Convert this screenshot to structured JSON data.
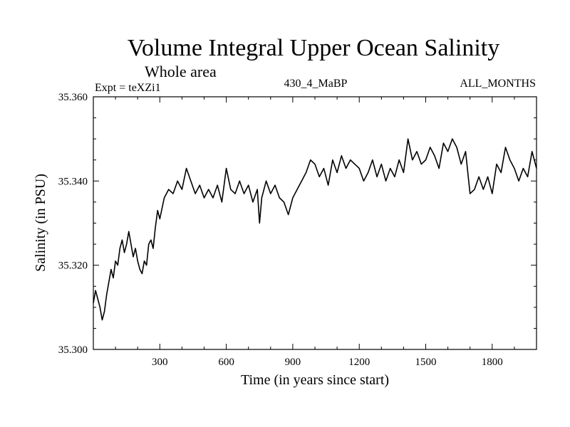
{
  "chart_data": {
    "type": "line",
    "title": "Volume Integral Upper Ocean Salinity",
    "subtitle": "Whole area",
    "left_label": "Expt = teXZi1",
    "center_label": "430_4_MaBP",
    "right_label": "ALL_MONTHS",
    "xlabel": "Time (in years since start)",
    "ylabel": "Salinity (in PSU)",
    "xlim": [
      0,
      2000
    ],
    "ylim": [
      35.3,
      35.36
    ],
    "xticks": [
      300,
      600,
      900,
      1200,
      1500,
      1800
    ],
    "yticks": [
      35.3,
      35.32,
      35.34,
      35.36
    ],
    "ytick_labels": [
      "35.300",
      "35.320",
      "35.340",
      "35.360"
    ],
    "xtick_labels": [
      "300",
      "600",
      "900",
      "1200",
      "1500",
      "1800"
    ],
    "series": [
      {
        "name": "salinity",
        "x": [
          0,
          10,
          20,
          30,
          40,
          50,
          60,
          70,
          80,
          90,
          100,
          110,
          120,
          130,
          140,
          150,
          160,
          170,
          180,
          190,
          200,
          210,
          220,
          230,
          240,
          250,
          260,
          270,
          280,
          290,
          300,
          320,
          340,
          360,
          380,
          400,
          420,
          440,
          460,
          480,
          500,
          520,
          540,
          560,
          580,
          600,
          620,
          640,
          660,
          680,
          700,
          720,
          740,
          750,
          760,
          780,
          800,
          820,
          840,
          860,
          880,
          900,
          920,
          940,
          960,
          980,
          1000,
          1020,
          1040,
          1060,
          1080,
          1100,
          1120,
          1140,
          1160,
          1180,
          1200,
          1220,
          1240,
          1260,
          1280,
          1300,
          1320,
          1340,
          1360,
          1380,
          1400,
          1420,
          1440,
          1460,
          1480,
          1500,
          1520,
          1540,
          1560,
          1580,
          1600,
          1620,
          1640,
          1660,
          1680,
          1700,
          1720,
          1740,
          1760,
          1780,
          1800,
          1820,
          1840,
          1860,
          1880,
          1900,
          1920,
          1940,
          1960,
          1980,
          2000
        ],
        "values": [
          35.311,
          35.314,
          35.312,
          35.31,
          35.307,
          35.309,
          35.313,
          35.316,
          35.319,
          35.317,
          35.321,
          35.32,
          35.324,
          35.326,
          35.323,
          35.325,
          35.328,
          35.325,
          35.322,
          35.324,
          35.321,
          35.319,
          35.318,
          35.321,
          35.32,
          35.325,
          35.326,
          35.324,
          35.329,
          35.333,
          35.331,
          35.336,
          35.338,
          35.337,
          35.34,
          35.338,
          35.343,
          35.34,
          35.337,
          35.339,
          35.336,
          35.338,
          35.336,
          35.339,
          35.335,
          35.343,
          35.338,
          35.337,
          35.34,
          35.337,
          35.339,
          35.335,
          35.338,
          35.33,
          35.336,
          35.34,
          35.337,
          35.339,
          35.336,
          35.335,
          35.332,
          35.336,
          35.338,
          35.34,
          35.342,
          35.345,
          35.344,
          35.341,
          35.343,
          35.339,
          35.345,
          35.342,
          35.346,
          35.343,
          35.345,
          35.344,
          35.343,
          35.34,
          35.342,
          35.345,
          35.341,
          35.344,
          35.34,
          35.343,
          35.341,
          35.345,
          35.342,
          35.35,
          35.345,
          35.347,
          35.344,
          35.345,
          35.348,
          35.346,
          35.343,
          35.349,
          35.347,
          35.35,
          35.348,
          35.344,
          35.347,
          35.337,
          35.338,
          35.341,
          35.338,
          35.341,
          35.337,
          35.344,
          35.342,
          35.348,
          35.345,
          35.343,
          35.34,
          35.343,
          35.341,
          35.347,
          35.343
        ]
      }
    ]
  }
}
